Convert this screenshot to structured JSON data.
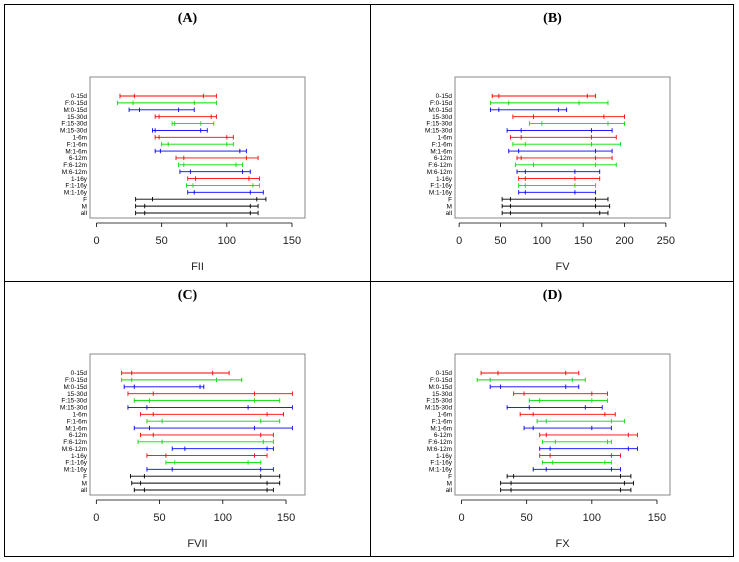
{
  "colors": {
    "red": "#ff0000",
    "green": "#00dd00",
    "blue": "#0000ff",
    "black": "#000000"
  },
  "chart_data": [
    {
      "panel_label": "(A)",
      "type": "interval",
      "xlabel": "FII",
      "xlim": [
        -5,
        160
      ],
      "xticks": [
        0,
        50,
        100,
        150
      ],
      "categories": [
        "0-15d",
        "F:0-15d",
        "M:0-15d",
        "15-30d",
        "F:15-30d",
        "M:15-30d",
        "1-6m",
        "F:1-6m",
        "M:1-6m",
        "6-12m",
        "F:6-12m",
        "M:6-12m",
        "1-16y",
        "F:1-16y",
        "M:1-16y",
        "F",
        "M",
        "all"
      ],
      "series_colors": [
        "red",
        "green",
        "blue",
        "red",
        "green",
        "blue",
        "red",
        "green",
        "blue",
        "red",
        "green",
        "blue",
        "red",
        "green",
        "blue",
        "black",
        "black",
        "black"
      ],
      "intervals": [
        [
          18,
          29,
          82,
          92
        ],
        [
          16,
          28,
          75,
          92
        ],
        [
          25,
          33,
          63,
          75
        ],
        [
          45,
          48,
          88,
          92
        ],
        [
          58,
          60,
          80,
          90
        ],
        [
          43,
          45,
          80,
          85
        ],
        [
          45,
          48,
          100,
          105
        ],
        [
          50,
          55,
          100,
          105
        ],
        [
          45,
          49,
          110,
          115
        ],
        [
          61,
          67,
          115,
          124
        ],
        [
          63,
          67,
          107,
          112
        ],
        [
          64,
          72,
          112,
          118
        ],
        [
          70,
          76,
          117,
          125
        ],
        [
          69,
          74,
          120,
          125
        ],
        [
          70,
          75,
          118,
          128
        ],
        [
          30,
          43,
          123,
          130
        ],
        [
          30,
          37,
          118,
          124
        ],
        [
          30,
          37,
          118,
          124
        ]
      ]
    },
    {
      "panel_label": "(B)",
      "type": "interval",
      "xlabel": "FV",
      "xlim": [
        -5,
        255
      ],
      "xticks": [
        0,
        50,
        100,
        150,
        200,
        250
      ],
      "categories": [
        "0-15d",
        "F:0-15d",
        "M:0-15d",
        "15-30d",
        "F:15-30d",
        "M:15-30d",
        "1-6m",
        "F:1-6m",
        "M:1-6m",
        "6-12m",
        "F:6-12m",
        "M:6-12m",
        "1-16y",
        "F:1-16y",
        "M:1-16y",
        "F",
        "M",
        "all"
      ],
      "series_colors": [
        "red",
        "green",
        "blue",
        "red",
        "green",
        "blue",
        "red",
        "green",
        "blue",
        "red",
        "green",
        "blue",
        "red",
        "green",
        "blue",
        "black",
        "black",
        "black"
      ],
      "intervals": [
        [
          40,
          48,
          155,
          165
        ],
        [
          38,
          60,
          145,
          180
        ],
        [
          38,
          48,
          120,
          130
        ],
        [
          65,
          90,
          175,
          200
        ],
        [
          85,
          100,
          180,
          200
        ],
        [
          58,
          75,
          160,
          185
        ],
        [
          62,
          75,
          160,
          190
        ],
        [
          65,
          80,
          160,
          195
        ],
        [
          60,
          72,
          165,
          185
        ],
        [
          70,
          75,
          165,
          185
        ],
        [
          68,
          90,
          165,
          190
        ],
        [
          70,
          80,
          140,
          170
        ],
        [
          72,
          80,
          140,
          170
        ],
        [
          72,
          80,
          140,
          165
        ],
        [
          72,
          80,
          140,
          165
        ],
        [
          52,
          62,
          165,
          180
        ],
        [
          52,
          62,
          165,
          182
        ],
        [
          52,
          62,
          170,
          180
        ]
      ]
    },
    {
      "panel_label": "(C)",
      "type": "interval",
      "xlabel": "FVII",
      "xlim": [
        -5,
        165
      ],
      "xticks": [
        0,
        50,
        100,
        150
      ],
      "categories": [
        "0-15d",
        "F:0-15d",
        "M:0-15d",
        "15-30d",
        "F:15-30d",
        "M:15-30d",
        "1-6m",
        "F:1-6m",
        "M:1-6m",
        "6-12m",
        "F:6-12m",
        "M:6-12m",
        "1-16y",
        "F:1-16y",
        "M:1-16y",
        "F",
        "M",
        "all"
      ],
      "series_colors": [
        "red",
        "green",
        "blue",
        "red",
        "green",
        "blue",
        "red",
        "green",
        "blue",
        "red",
        "green",
        "blue",
        "red",
        "green",
        "blue",
        "black",
        "black",
        "black"
      ],
      "intervals": [
        [
          20,
          28,
          92,
          105
        ],
        [
          20,
          28,
          95,
          115
        ],
        [
          22,
          30,
          82,
          85
        ],
        [
          25,
          45,
          125,
          155
        ],
        [
          30,
          42,
          125,
          145
        ],
        [
          25,
          40,
          120,
          155
        ],
        [
          35,
          45,
          135,
          148
        ],
        [
          40,
          52,
          130,
          145
        ],
        [
          30,
          42,
          125,
          155
        ],
        [
          35,
          45,
          130,
          140
        ],
        [
          33,
          52,
          132,
          140
        ],
        [
          60,
          70,
          135,
          140
        ],
        [
          40,
          55,
          125,
          135
        ],
        [
          55,
          62,
          120,
          130
        ],
        [
          40,
          60,
          130,
          140
        ],
        [
          27,
          38,
          130,
          145
        ],
        [
          28,
          35,
          135,
          145
        ],
        [
          30,
          38,
          135,
          140
        ]
      ]
    },
    {
      "panel_label": "(D)",
      "type": "interval",
      "xlabel": "FX",
      "xlim": [
        -5,
        160
      ],
      "xticks": [
        0,
        50,
        100,
        150
      ],
      "categories": [
        "0-15d",
        "F:0-15d",
        "M:0-15d",
        "15-30d",
        "F:15-30d",
        "M:15-30d",
        "1-6m",
        "F:1-6m",
        "M:1-6m",
        "6-12m",
        "F:6-12m",
        "M:6-12m",
        "1-16y",
        "F:1-16y",
        "M:1-16y",
        "F",
        "M",
        "all"
      ],
      "series_colors": [
        "red",
        "green",
        "blue",
        "red",
        "green",
        "blue",
        "red",
        "green",
        "blue",
        "red",
        "green",
        "blue",
        "red",
        "green",
        "blue",
        "black",
        "black",
        "black"
      ],
      "intervals": [
        [
          15,
          28,
          80,
          90
        ],
        [
          12,
          22,
          85,
          95
        ],
        [
          22,
          30,
          80,
          90
        ],
        [
          40,
          48,
          100,
          112
        ],
        [
          52,
          60,
          100,
          112
        ],
        [
          35,
          52,
          95,
          108
        ],
        [
          45,
          55,
          110,
          118
        ],
        [
          58,
          65,
          115,
          125
        ],
        [
          48,
          55,
          100,
          115
        ],
        [
          60,
          65,
          128,
          135
        ],
        [
          62,
          72,
          112,
          115
        ],
        [
          60,
          68,
          128,
          135
        ],
        [
          60,
          68,
          115,
          122
        ],
        [
          62,
          70,
          110,
          115
        ],
        [
          55,
          65,
          115,
          122
        ],
        [
          35,
          40,
          122,
          130
        ],
        [
          30,
          38,
          125,
          132
        ],
        [
          30,
          38,
          122,
          130
        ]
      ]
    }
  ]
}
